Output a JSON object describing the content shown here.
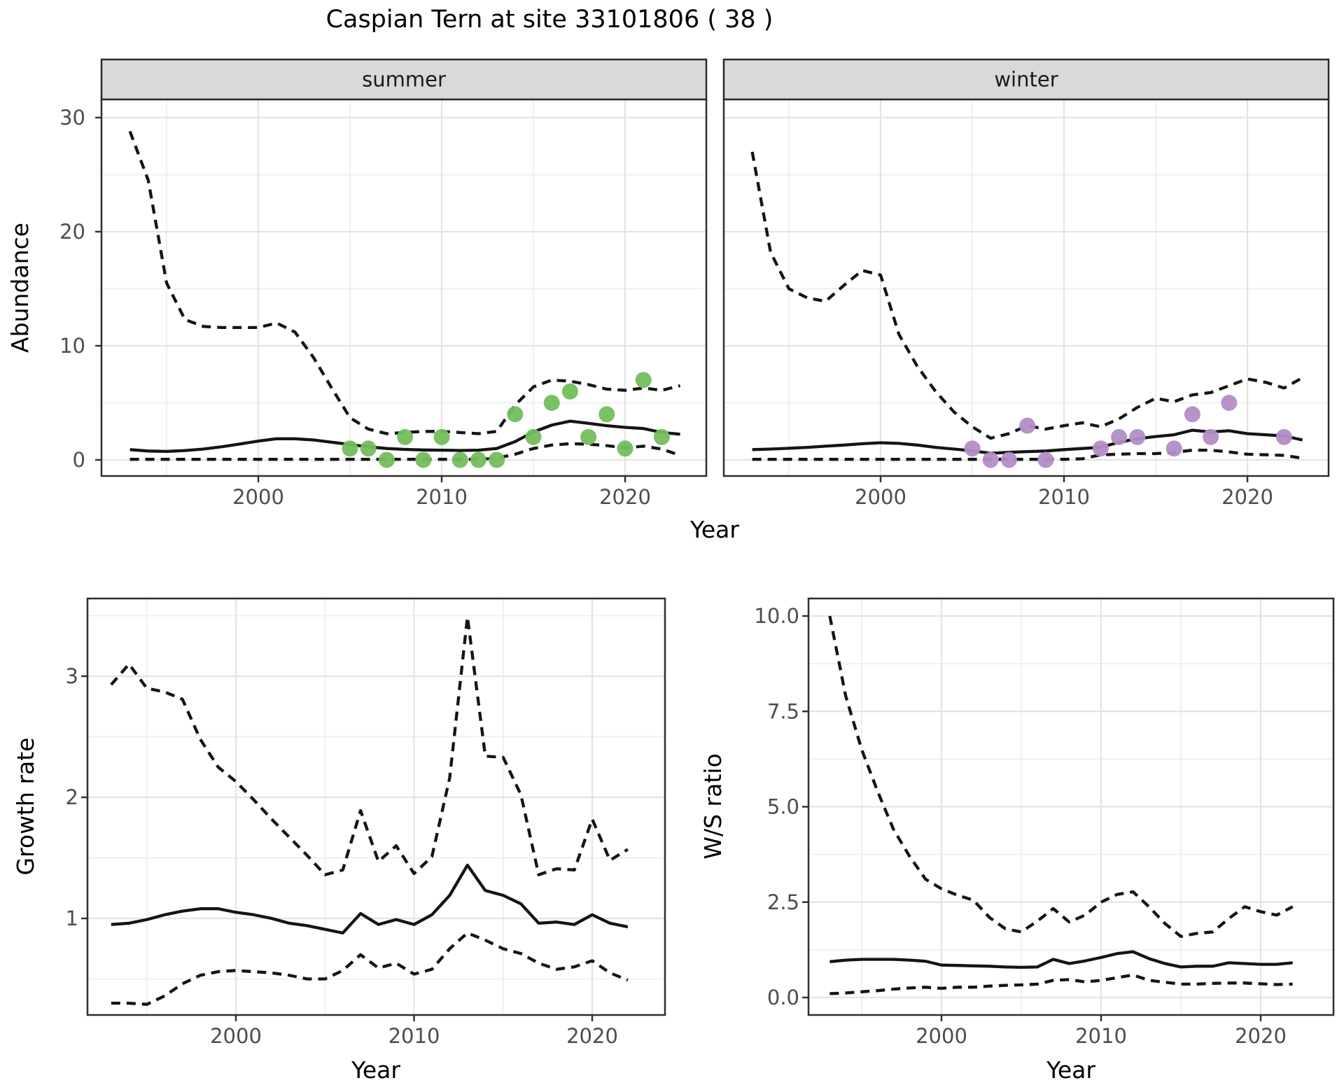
{
  "title": "Caspian Tern at site 33101806 ( 38 )",
  "colors": {
    "summer_point": "#72BE5A",
    "winter_point": "#B38DC6",
    "line": "#141414",
    "grid_major": "#E4E4E4",
    "grid_minor": "#F0F0F0",
    "strip_bg": "#D9D9D9",
    "panel_border": "#2E2E2E",
    "tick_label": "#4D4D4D",
    "axis_title": "#000000",
    "background": "#FFFFFF"
  },
  "chart_data": [
    {
      "id": "abundance-summer",
      "type": "line",
      "facet_label": "summer",
      "xlabel": "Year",
      "ylabel": "Abundance",
      "xlim": [
        1991.5,
        2024.5
      ],
      "ylim": [
        -1.4,
        31.6
      ],
      "xticks": [
        2000,
        2010,
        2020
      ],
      "xticks_minor": [
        1995,
        2005,
        2015
      ],
      "yticks": [
        0,
        10,
        20,
        30
      ],
      "yticks_minor": [
        5,
        15,
        25
      ],
      "grid": true,
      "legend": "none",
      "x": [
        1993,
        1994,
        1995,
        1996,
        1997,
        1998,
        1999,
        2000,
        2001,
        2002,
        2003,
        2004,
        2005,
        2006,
        2007,
        2008,
        2009,
        2010,
        2011,
        2012,
        2013,
        2014,
        2015,
        2016,
        2017,
        2018,
        2019,
        2020,
        2021,
        2022,
        2023
      ],
      "series": [
        {
          "name": "upper_ci",
          "style": "dashed",
          "values": [
            28.8,
            24.5,
            15.5,
            12.3,
            11.7,
            11.6,
            11.6,
            11.6,
            12.0,
            11.2,
            9.0,
            6.3,
            3.7,
            2.7,
            2.3,
            2.4,
            2.5,
            2.5,
            2.4,
            2.3,
            2.5,
            4.8,
            6.4,
            7.0,
            6.9,
            6.6,
            6.2,
            6.1,
            6.3,
            6.1,
            6.5
          ]
        },
        {
          "name": "median",
          "style": "solid",
          "values": [
            0.9,
            0.78,
            0.74,
            0.82,
            0.95,
            1.15,
            1.4,
            1.65,
            1.85,
            1.85,
            1.75,
            1.55,
            1.35,
            1.15,
            1.0,
            0.92,
            0.87,
            0.85,
            0.83,
            0.85,
            1.0,
            1.6,
            2.45,
            3.05,
            3.4,
            3.2,
            3.0,
            2.85,
            2.75,
            2.4,
            2.25
          ]
        },
        {
          "name": "lower_ci",
          "style": "dashed",
          "values": [
            0.05,
            0.05,
            0.05,
            0.05,
            0.05,
            0.05,
            0.05,
            0.05,
            0.05,
            0.05,
            0.05,
            0.05,
            0.05,
            0.05,
            0.05,
            0.05,
            0.05,
            0.05,
            0.05,
            0.05,
            0.15,
            0.5,
            1.0,
            1.3,
            1.42,
            1.38,
            1.25,
            1.05,
            1.2,
            0.95,
            0.4
          ]
        }
      ],
      "points": {
        "name": "observed-summer",
        "color_key": "summer_point",
        "data": [
          [
            2005,
            1
          ],
          [
            2006,
            1
          ],
          [
            2007,
            0
          ],
          [
            2008,
            2
          ],
          [
            2009,
            0
          ],
          [
            2010,
            2
          ],
          [
            2011,
            0
          ],
          [
            2012,
            0
          ],
          [
            2013,
            0
          ],
          [
            2014,
            4
          ],
          [
            2015,
            2
          ],
          [
            2016,
            5
          ],
          [
            2017,
            6
          ],
          [
            2018,
            2
          ],
          [
            2019,
            4
          ],
          [
            2020,
            1
          ],
          [
            2021,
            7
          ],
          [
            2022,
            2
          ]
        ]
      }
    },
    {
      "id": "abundance-winter",
      "type": "line",
      "facet_label": "winter",
      "xlabel": "Year",
      "ylabel": "Abundance",
      "xlim": [
        1991.5,
        2024.5
      ],
      "ylim": [
        -1.4,
        31.6
      ],
      "xticks": [
        2000,
        2010,
        2020
      ],
      "xticks_minor": [
        1995,
        2005,
        2015
      ],
      "yticks": [
        0,
        10,
        20,
        30
      ],
      "yticks_minor": [
        5,
        15,
        25
      ],
      "grid": true,
      "legend": "none",
      "x": [
        1993,
        1994,
        1995,
        1996,
        1997,
        1998,
        1999,
        2000,
        2001,
        2002,
        2003,
        2004,
        2005,
        2006,
        2007,
        2008,
        2009,
        2010,
        2011,
        2012,
        2013,
        2014,
        2015,
        2016,
        2017,
        2018,
        2019,
        2020,
        2021,
        2022,
        2023
      ],
      "series": [
        {
          "name": "upper_ci",
          "style": "dashed",
          "values": [
            27.0,
            18.2,
            15.0,
            14.2,
            13.9,
            15.3,
            16.6,
            16.2,
            11.0,
            8.2,
            6.0,
            4.2,
            2.9,
            1.9,
            2.3,
            3.0,
            2.7,
            3.0,
            3.25,
            2.9,
            3.6,
            4.6,
            5.4,
            5.1,
            5.7,
            5.9,
            6.5,
            7.1,
            6.8,
            6.3,
            7.2
          ]
        },
        {
          "name": "median",
          "style": "solid",
          "values": [
            0.9,
            0.95,
            1.02,
            1.1,
            1.2,
            1.3,
            1.42,
            1.5,
            1.45,
            1.3,
            1.1,
            0.95,
            0.8,
            0.58,
            0.66,
            0.73,
            0.78,
            0.9,
            1.0,
            1.1,
            1.55,
            1.85,
            2.05,
            2.2,
            2.6,
            2.45,
            2.55,
            2.3,
            2.2,
            2.1,
            1.75
          ]
        },
        {
          "name": "lower_ci",
          "style": "dashed",
          "values": [
            0.05,
            0.05,
            0.05,
            0.05,
            0.05,
            0.05,
            0.05,
            0.05,
            0.05,
            0.05,
            0.05,
            0.05,
            0.05,
            0.05,
            0.05,
            0.05,
            0.05,
            0.05,
            0.1,
            0.45,
            0.5,
            0.55,
            0.55,
            0.65,
            0.85,
            0.85,
            0.7,
            0.5,
            0.45,
            0.4,
            0.15
          ]
        }
      ],
      "points": {
        "name": "observed-winter",
        "color_key": "winter_point",
        "data": [
          [
            2005,
            1
          ],
          [
            2006,
            0
          ],
          [
            2007,
            0
          ],
          [
            2008,
            3
          ],
          [
            2009,
            0
          ],
          [
            2012,
            1
          ],
          [
            2013,
            2
          ],
          [
            2014,
            2
          ],
          [
            2016,
            1
          ],
          [
            2017,
            4
          ],
          [
            2018,
            2
          ],
          [
            2019,
            5
          ],
          [
            2022,
            2
          ]
        ]
      }
    },
    {
      "id": "growth-rate",
      "type": "line",
      "facet_label": null,
      "xlabel": "Year",
      "ylabel": "Growth rate",
      "xlim": [
        1991.5,
        2024.3
      ],
      "ylim": [
        0.2,
        3.64
      ],
      "xticks": [
        2000,
        2010,
        2020
      ],
      "xticks_minor": [
        1995,
        2005,
        2015
      ],
      "yticks": [
        1,
        2,
        3
      ],
      "yticks_minor": [
        0.5,
        1.5,
        2.5,
        3.5
      ],
      "grid": true,
      "legend": "none",
      "x": [
        1993,
        1994,
        1995,
        1996,
        1997,
        1998,
        1999,
        2000,
        2001,
        2002,
        2003,
        2004,
        2005,
        2006,
        2007,
        2008,
        2009,
        2010,
        2011,
        2012,
        2013,
        2014,
        2015,
        2016,
        2017,
        2018,
        2019,
        2020,
        2021,
        2022
      ],
      "series": [
        {
          "name": "upper_ci",
          "style": "dashed",
          "values": [
            2.93,
            3.1,
            2.9,
            2.87,
            2.81,
            2.48,
            2.25,
            2.13,
            1.98,
            1.82,
            1.67,
            1.52,
            1.36,
            1.4,
            1.89,
            1.47,
            1.6,
            1.37,
            1.51,
            2.16,
            3.49,
            2.34,
            2.33,
            2.02,
            1.36,
            1.41,
            1.4,
            1.82,
            1.48,
            1.57
          ]
        },
        {
          "name": "median",
          "style": "solid",
          "values": [
            0.95,
            0.96,
            0.99,
            1.03,
            1.06,
            1.08,
            1.08,
            1.05,
            1.03,
            1.0,
            0.96,
            0.94,
            0.91,
            0.88,
            1.04,
            0.95,
            0.99,
            0.95,
            1.03,
            1.19,
            1.44,
            1.23,
            1.19,
            1.12,
            0.96,
            0.97,
            0.95,
            1.03,
            0.96,
            0.93
          ]
        },
        {
          "name": "lower_ci",
          "style": "dashed",
          "values": [
            0.3,
            0.3,
            0.29,
            0.36,
            0.46,
            0.53,
            0.56,
            0.57,
            0.56,
            0.55,
            0.53,
            0.5,
            0.5,
            0.57,
            0.7,
            0.59,
            0.63,
            0.54,
            0.58,
            0.75,
            0.88,
            0.82,
            0.75,
            0.71,
            0.63,
            0.58,
            0.6,
            0.65,
            0.55,
            0.49
          ]
        }
      ],
      "points": null
    },
    {
      "id": "ws-ratio",
      "type": "line",
      "facet_label": null,
      "xlabel": "Year",
      "ylabel": "W/S ratio",
      "xlim": [
        1991.5,
        2024.6
      ],
      "ylim": [
        -0.46,
        10.46
      ],
      "xticks": [
        2000,
        2010,
        2020
      ],
      "xticks_minor": [
        1995,
        2005,
        2015
      ],
      "yticks": [
        0.0,
        2.5,
        5.0,
        7.5,
        10.0
      ],
      "ytick_labels": [
        "0.0",
        "2.5",
        "5.0",
        "7.5",
        "10.0"
      ],
      "yticks_minor": [
        1.25,
        3.75,
        6.25,
        8.75
      ],
      "grid": true,
      "legend": "none",
      "x": [
        1993,
        1994,
        1995,
        1996,
        1997,
        1998,
        1999,
        2000,
        2001,
        2002,
        2003,
        2004,
        2005,
        2006,
        2007,
        2008,
        2009,
        2010,
        2011,
        2012,
        2013,
        2014,
        2015,
        2016,
        2017,
        2018,
        2019,
        2020,
        2021,
        2022
      ],
      "series": [
        {
          "name": "upper_ci",
          "style": "dashed",
          "values": [
            10.0,
            7.9,
            6.5,
            5.4,
            4.4,
            3.7,
            3.1,
            2.85,
            2.68,
            2.55,
            2.1,
            1.8,
            1.72,
            2.0,
            2.33,
            1.98,
            2.16,
            2.5,
            2.7,
            2.77,
            2.38,
            1.94,
            1.6,
            1.68,
            1.72,
            2.07,
            2.38,
            2.25,
            2.16,
            2.38
          ]
        },
        {
          "name": "median",
          "style": "solid",
          "values": [
            0.94,
            0.98,
            1.0,
            1.0,
            1.0,
            0.98,
            0.95,
            0.85,
            0.84,
            0.83,
            0.82,
            0.8,
            0.79,
            0.8,
            1.0,
            0.89,
            0.96,
            1.05,
            1.15,
            1.2,
            1.02,
            0.89,
            0.8,
            0.82,
            0.82,
            0.91,
            0.89,
            0.87,
            0.87,
            0.91
          ]
        },
        {
          "name": "lower_ci",
          "style": "dashed",
          "values": [
            0.1,
            0.12,
            0.15,
            0.18,
            0.22,
            0.25,
            0.27,
            0.24,
            0.27,
            0.27,
            0.3,
            0.32,
            0.33,
            0.35,
            0.45,
            0.47,
            0.41,
            0.45,
            0.52,
            0.59,
            0.45,
            0.4,
            0.35,
            0.35,
            0.37,
            0.38,
            0.38,
            0.36,
            0.34,
            0.35
          ]
        }
      ],
      "points": null
    }
  ]
}
